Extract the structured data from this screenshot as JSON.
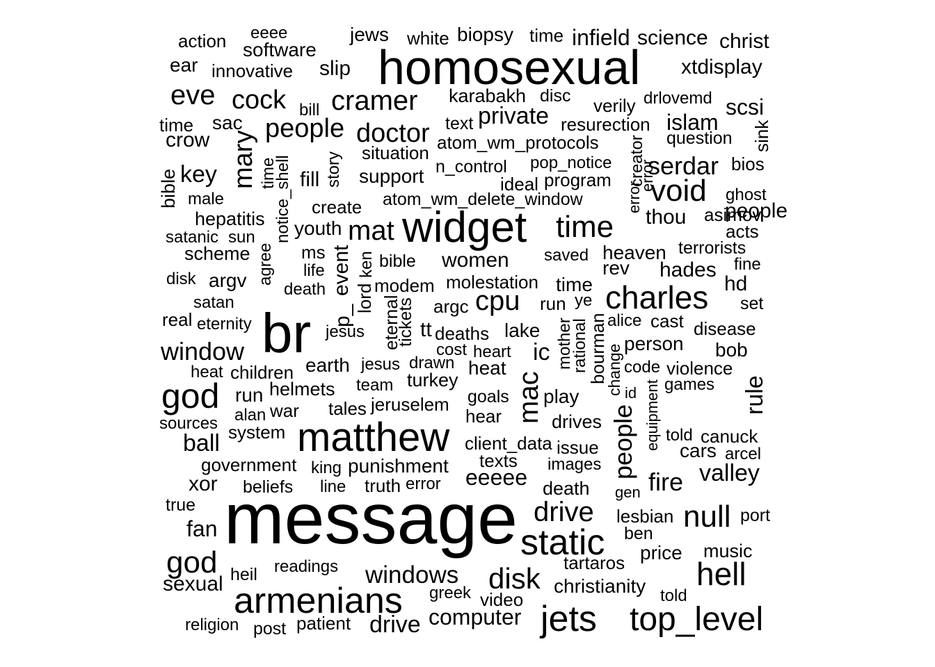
{
  "word_cloud": {
    "words": [
      "message",
      "homosexual",
      "br",
      "widget",
      "matthew",
      "armenians",
      "static",
      "jets",
      "top_level",
      "charles",
      "god",
      "hell",
      "time",
      "god",
      "disk",
      "drive",
      "cramer",
      "doctor",
      "people",
      "cock",
      "eve",
      "cpu",
      "void",
      "null",
      "mat",
      "window",
      "windows",
      "private",
      "mac",
      "serdar",
      "fire",
      "valley",
      "women",
      "people",
      "drive",
      "computer",
      "christianity",
      "rule",
      "mary",
      "people",
      "eeeee",
      "key",
      "ball",
      "xor",
      "fan",
      "sexual",
      "scsi",
      "islam",
      "hades",
      "hd",
      "bourman",
      "cars",
      "crow",
      "software",
      "infield",
      "science",
      "christ",
      "xtdisplay",
      "slip",
      "jews",
      "biopsy",
      "white",
      "time",
      "action",
      "eeee",
      "ear",
      "innovative",
      "time",
      "karabakh",
      "disc",
      "verily",
      "drlovemd",
      "bill",
      "text",
      "sac",
      "resurection",
      "question",
      "sink",
      "atom_wm_protocols",
      "situation",
      "support",
      "n_control",
      "pop_notice",
      "bios",
      "ideal",
      "program",
      "ghost",
      "create",
      "atom_wm_delete_window",
      "male",
      "bible",
      "time",
      "notice_shell",
      "fill",
      "story",
      "hepatitis",
      "thou",
      "asimov",
      "acts",
      "satanic",
      "sun",
      "youth",
      "scheme",
      "ms",
      "agree",
      "event",
      "p_",
      "ken",
      "bible",
      "saved",
      "heaven",
      "terrorists",
      "rev",
      "fine",
      "disk",
      "argv",
      "life",
      "death",
      "lord",
      "modem",
      "molestation",
      "time",
      "satan",
      "eternal",
      "tickets",
      "argc",
      "run",
      "ye",
      "set",
      "real",
      "eternity",
      "jesus",
      "tt",
      "deaths",
      "lake",
      "alice",
      "cast",
      "disease",
      "mother",
      "rational",
      "person",
      "bob",
      "cost",
      "heart",
      "ic",
      "heat",
      "children",
      "earth",
      "jesus",
      "drawn",
      "heat",
      "change",
      "code",
      "violence",
      "run",
      "helmets",
      "team",
      "turkey",
      "id",
      "games",
      "alan",
      "war",
      "tales",
      "jeruselem",
      "goals",
      "play",
      "equipment",
      "sources",
      "hear",
      "drives",
      "system",
      "client_data",
      "issue",
      "told",
      "canuck",
      "government",
      "king",
      "punishment",
      "texts",
      "images",
      "arcel",
      "beliefs",
      "line",
      "truth",
      "error",
      "death",
      "gen",
      "true",
      "lesbian",
      "port",
      "ben",
      "tartaros",
      "price",
      "music",
      "heil",
      "readings",
      "greek",
      "video",
      "told",
      "religion",
      "post",
      "patient",
      "creator",
      "error",
      "error"
    ]
  }
}
